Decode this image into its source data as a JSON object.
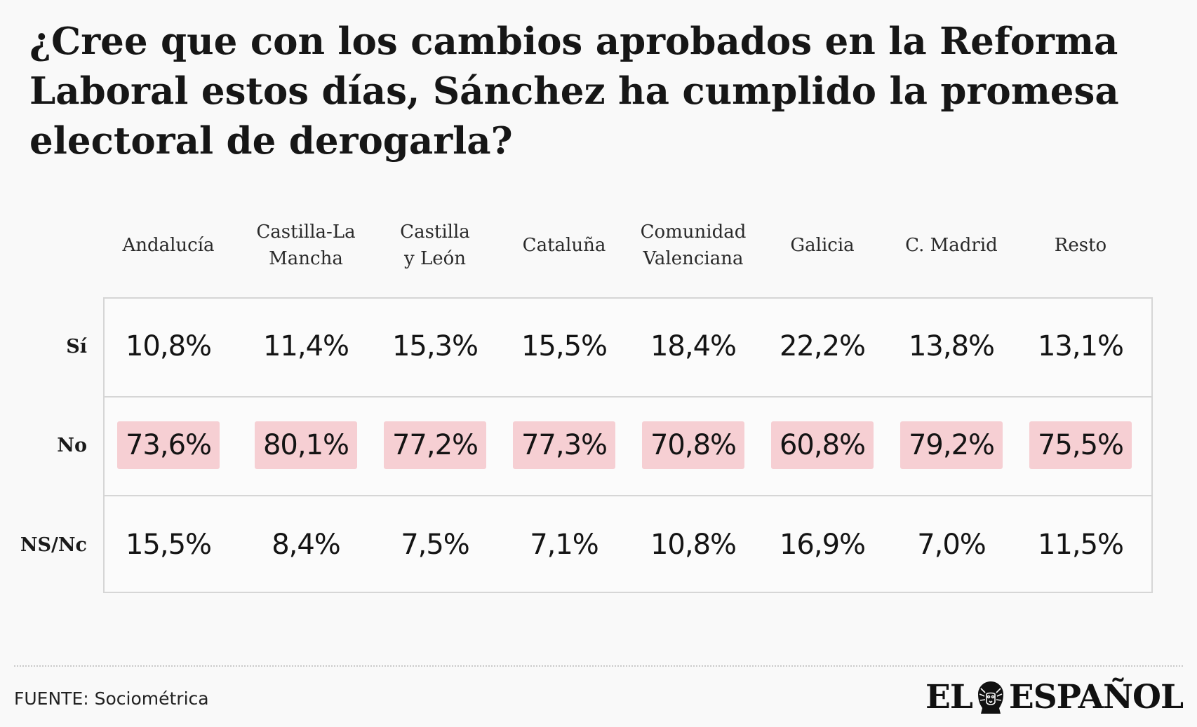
{
  "title": "¿Cree que con los cambios aprobados en la Reforma Laboral estos días, Sánchez ha cumplido la promesa electoral de derogarla?",
  "source": "FUENTE: Sociométrica",
  "logo": {
    "left": "EL",
    "right": "ESPAÑOL"
  },
  "colors": {
    "highlight": "#f6cfd3",
    "border": "#d6d6d6",
    "background": "#f9f9f9"
  },
  "chart_data": {
    "type": "table",
    "columns": [
      "Andalucía",
      "Castilla-La Mancha",
      "Castilla y León",
      "Cataluña",
      "Comunidad Valenciana",
      "Galicia",
      "C. Madrid",
      "Resto"
    ],
    "column_lines": [
      [
        "Andalucía"
      ],
      [
        "Castilla-La",
        "Mancha"
      ],
      [
        "Castilla",
        "y León"
      ],
      [
        "Cataluña"
      ],
      [
        "Comunidad",
        "Valenciana"
      ],
      [
        "Galicia"
      ],
      [
        "C. Madrid"
      ],
      [
        "Resto"
      ]
    ],
    "rows": [
      {
        "label": "Sí",
        "highlight": false,
        "values": [
          10.8,
          11.4,
          15.3,
          15.5,
          18.4,
          22.2,
          13.8,
          13.1
        ],
        "display": [
          "10,8%",
          "11,4%",
          "15,3%",
          "15,5%",
          "18,4%",
          "22,2%",
          "13,8%",
          "13,1%"
        ]
      },
      {
        "label": "No",
        "highlight": true,
        "values": [
          73.6,
          80.1,
          77.2,
          77.3,
          70.8,
          60.8,
          79.2,
          75.5
        ],
        "display": [
          "73,6%",
          "80,1%",
          "77,2%",
          "77,3%",
          "70,8%",
          "60,8%",
          "79,2%",
          "75,5%"
        ]
      },
      {
        "label": "NS/Nc",
        "highlight": false,
        "values": [
          15.5,
          8.4,
          7.5,
          7.1,
          10.8,
          16.9,
          7.0,
          11.5
        ],
        "display": [
          "15,5%",
          "8,4%",
          "7,5%",
          "7,1%",
          "10,8%",
          "16,9%",
          "7,0%",
          "11,5%"
        ]
      }
    ]
  }
}
